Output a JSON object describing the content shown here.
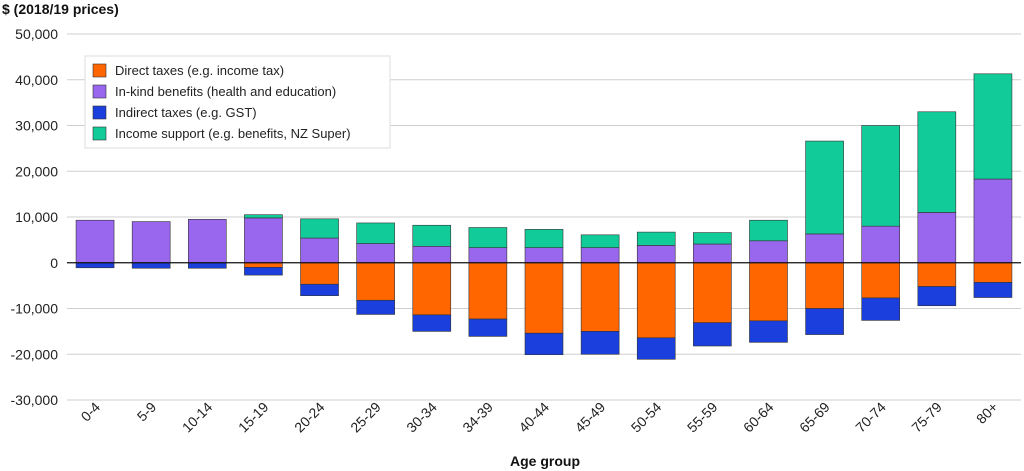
{
  "chart_data": {
    "type": "bar",
    "stacked": true,
    "title": "",
    "ylabel": "$ (2018/19 prices)",
    "xlabel": "Age group",
    "ylim": [
      -30000,
      50000
    ],
    "yticks": [
      50000,
      40000,
      30000,
      20000,
      10000,
      0,
      -10000,
      -20000,
      -30000
    ],
    "ytick_labels": [
      "50,000",
      "40,000",
      "30,000",
      "20,000",
      "10,000",
      "0",
      "-10,000",
      "-20,000",
      "-30,000"
    ],
    "grid": true,
    "legend_position": "top-left",
    "categories": [
      "0-4",
      "5-9",
      "10-14",
      "15-19",
      "20-24",
      "25-29",
      "30-34",
      "34-39",
      "40-44",
      "45-49",
      "50-54",
      "55-59",
      "60-64",
      "65-69",
      "70-74",
      "75-79",
      "80+"
    ],
    "series": [
      {
        "name": "Direct taxes (e.g. income tax)",
        "color": "#ff6600",
        "direction": "negative",
        "values": [
          0,
          0,
          0,
          1000,
          4700,
          8200,
          11400,
          12300,
          15400,
          15000,
          16400,
          13100,
          12700,
          10000,
          7700,
          5200,
          4300
        ]
      },
      {
        "name": "In-kind benefits (health and education)",
        "color": "#9966ee",
        "direction": "positive",
        "values": [
          9300,
          9000,
          9500,
          9800,
          5400,
          4200,
          3600,
          3300,
          3300,
          3300,
          3800,
          4100,
          4800,
          6300,
          8000,
          11000,
          18300
        ]
      },
      {
        "name": "Indirect taxes (e.g. GST)",
        "color": "#1a3fdd",
        "direction": "negative",
        "values": [
          1100,
          1200,
          1200,
          1700,
          2500,
          3100,
          3600,
          3800,
          4700,
          5000,
          4700,
          5100,
          4700,
          5700,
          4900,
          4200,
          3300
        ]
      },
      {
        "name": "Income support (e.g. benefits, NZ Super)",
        "color": "#11cc99",
        "direction": "positive",
        "values": [
          0,
          0,
          0,
          700,
          4200,
          4500,
          4600,
          4400,
          4000,
          2800,
          2900,
          2500,
          4500,
          20300,
          22000,
          22000,
          23000
        ]
      }
    ]
  }
}
